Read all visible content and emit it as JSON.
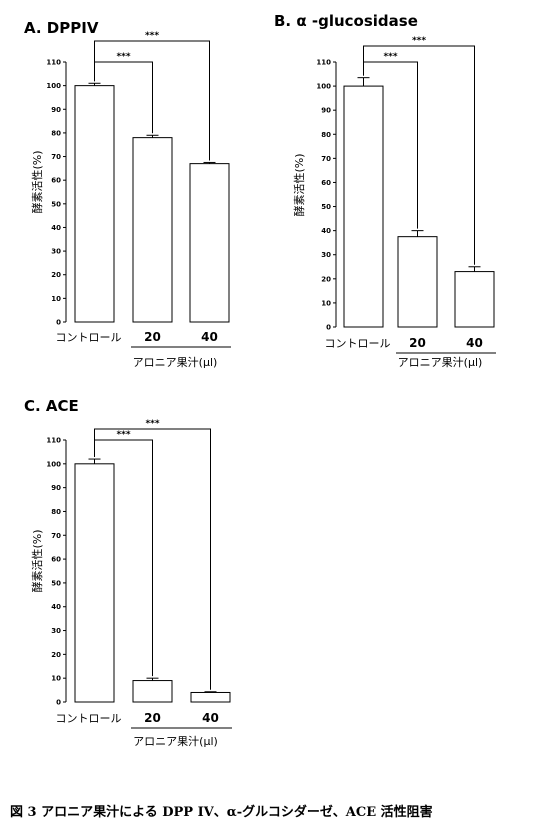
{
  "caption": "図 3 アロニア果汁による DPP IV、α-グルコシダーゼ、ACE 活性阻害",
  "chart_data": [
    {
      "type": "bar",
      "title": "A. DPPIV",
      "ylabel": "酵素活性(%)",
      "xlabel": "アロニア果汁(μl)",
      "categories": [
        "コントロール",
        "20",
        "40"
      ],
      "values": [
        100,
        78,
        67
      ],
      "errors": [
        1,
        1,
        0.5
      ],
      "ylim": [
        0,
        110
      ],
      "yticks": [
        0,
        10,
        20,
        30,
        40,
        50,
        60,
        70,
        80,
        90,
        100,
        110
      ],
      "significance": [
        {
          "from": 0,
          "to": 1,
          "label": "***"
        },
        {
          "from": 0,
          "to": 2,
          "label": "***"
        }
      ]
    },
    {
      "type": "bar",
      "title": "B. α -glucosidase",
      "ylabel": "酵素活性(%)",
      "xlabel": "アロニア果汁(μl)",
      "categories": [
        "コントロール",
        "20",
        "40"
      ],
      "values": [
        100,
        37.5,
        23
      ],
      "errors": [
        3.5,
        2.5,
        2
      ],
      "ylim": [
        0,
        110
      ],
      "yticks": [
        0,
        10,
        20,
        30,
        40,
        50,
        60,
        70,
        80,
        90,
        100,
        110
      ],
      "significance": [
        {
          "from": 0,
          "to": 1,
          "label": "***"
        },
        {
          "from": 0,
          "to": 2,
          "label": "***"
        }
      ]
    },
    {
      "type": "bar",
      "title": "C. ACE",
      "ylabel": "酵素活性(%)",
      "xlabel": "アロニア果汁(μl)",
      "categories": [
        "コントロール",
        "20",
        "40"
      ],
      "values": [
        100,
        9,
        4
      ],
      "errors": [
        2,
        1,
        0.3
      ],
      "ylim": [
        0,
        110
      ],
      "yticks": [
        0,
        10,
        20,
        30,
        40,
        50,
        60,
        70,
        80,
        90,
        100,
        110
      ],
      "significance": [
        {
          "from": 0,
          "to": 1,
          "label": "***"
        },
        {
          "from": 0,
          "to": 2,
          "label": "***"
        }
      ]
    }
  ]
}
